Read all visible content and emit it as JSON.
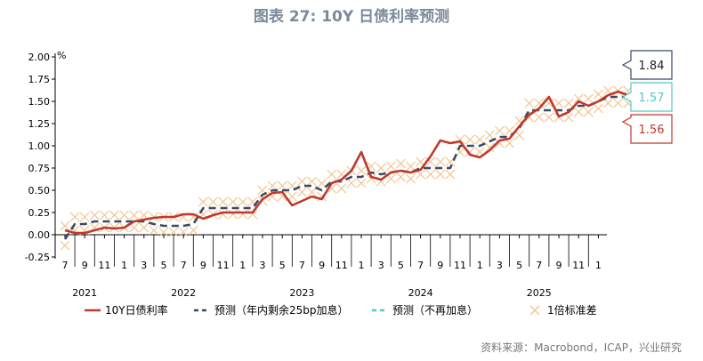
{
  "title": "图表 27: 10Y 日债利率预测",
  "source": "资料来源：Macrobond，ICAP，兴业研究",
  "chart_data": {
    "type": "line",
    "unit_label": "%",
    "ylim": [
      -0.25,
      2.0
    ],
    "yticks": [
      2.0,
      1.75,
      1.5,
      1.25,
      1.0,
      0.75,
      0.5,
      0.25,
      0.0,
      -0.25
    ],
    "ytick_labels": [
      "2.00",
      "1.75",
      "1.50",
      "1.25",
      "1.00",
      "0.75",
      "0.50",
      "0.25",
      "0.00",
      "-0.25"
    ],
    "x_ticks": [
      "7",
      "9",
      "11",
      "1",
      "3",
      "5",
      "7",
      "9",
      "11",
      "1",
      "3",
      "5",
      "7",
      "9",
      "11",
      "1",
      "3",
      "5",
      "7",
      "9",
      "11",
      "1",
      "3",
      "5",
      "7",
      "9",
      "11",
      "1"
    ],
    "year_labels": [
      {
        "label": "2021",
        "tick": 1
      },
      {
        "label": "2022",
        "tick": 6
      },
      {
        "label": "2023",
        "tick": 12
      },
      {
        "label": "2024",
        "tick": 18
      },
      {
        "label": "2025",
        "tick": 24
      }
    ],
    "colors": {
      "actual": "#c0392b",
      "forecast_hike": "#3b4a66",
      "forecast_no_hike": "#56c8c8",
      "band": "#f3c38d"
    },
    "series": [
      {
        "name": "10Y日债利率",
        "style": "solid",
        "x": [
          0,
          0.5,
          1,
          1.5,
          2,
          2.5,
          3,
          3.5,
          4,
          4.5,
          5,
          5.5,
          6,
          6.5,
          7,
          7.5,
          8,
          8.5,
          9,
          9.5,
          10,
          10.5,
          11,
          11.5,
          12,
          12.5,
          13,
          13.5,
          14,
          14.5,
          15,
          15.5,
          16,
          16.5,
          17,
          17.5,
          18,
          18.5,
          19,
          19.5,
          20,
          20.5,
          21,
          21.5,
          22,
          22.5,
          23,
          23.5,
          24,
          24.5,
          25,
          25.5,
          26,
          26.5,
          27,
          27.5,
          28,
          28.5,
          29
        ],
        "values": [
          0.05,
          0.02,
          0.02,
          0.05,
          0.08,
          0.07,
          0.08,
          0.15,
          0.17,
          0.19,
          0.2,
          0.2,
          0.23,
          0.23,
          0.18,
          0.22,
          0.25,
          0.25,
          0.25,
          0.25,
          0.4,
          0.47,
          0.48,
          0.33,
          0.38,
          0.43,
          0.4,
          0.58,
          0.62,
          0.72,
          0.93,
          0.65,
          0.62,
          0.7,
          0.72,
          0.7,
          0.73,
          0.88,
          1.06,
          1.03,
          1.05,
          0.9,
          0.87,
          0.95,
          1.06,
          1.08,
          1.22,
          1.35,
          1.42,
          1.55,
          1.33,
          1.38,
          1.5,
          1.45,
          1.5,
          1.57,
          1.61,
          1.57,
          1.56
        ]
      },
      {
        "name": "预测（年内剩余25bp加息）",
        "style": "dashed",
        "x": [
          0,
          0.5,
          1,
          1.5,
          2,
          2.5,
          3,
          3.5,
          4,
          4.5,
          5,
          5.5,
          6,
          6.5,
          7,
          7.5,
          8,
          8.5,
          9,
          9.5,
          10,
          10.5,
          11,
          11.5,
          12,
          12.5,
          13,
          13.5,
          14,
          14.5,
          15,
          15.5,
          16,
          16.5,
          17,
          17.5,
          18,
          18.5,
          19,
          19.5,
          20,
          20.5,
          21,
          21.5,
          22,
          22.5,
          23,
          23.5,
          24,
          24.5,
          25,
          25.5,
          26,
          26.5,
          27,
          27.5,
          28,
          28.5,
          29,
          29.5,
          30
        ],
        "values": [
          -0.05,
          0.12,
          0.12,
          0.15,
          0.15,
          0.15,
          0.15,
          0.15,
          0.15,
          0.12,
          0.1,
          0.1,
          0.1,
          0.12,
          0.3,
          0.3,
          0.3,
          0.3,
          0.3,
          0.3,
          0.45,
          0.5,
          0.5,
          0.5,
          0.55,
          0.55,
          0.5,
          0.6,
          0.6,
          0.65,
          0.65,
          0.7,
          0.68,
          0.7,
          0.72,
          0.7,
          0.75,
          0.75,
          0.75,
          0.75,
          1.0,
          1.0,
          1.0,
          1.05,
          1.1,
          1.1,
          1.2,
          1.4,
          1.4,
          1.4,
          1.4,
          1.4,
          1.45,
          1.45,
          1.5,
          1.55,
          1.55,
          1.55,
          1.55,
          1.84,
          1.84
        ]
      },
      {
        "name": "预测（不再加息）",
        "style": "dashed",
        "x": [
          29,
          29.5,
          30
        ],
        "values": [
          1.56,
          1.57,
          1.57
        ]
      },
      {
        "name": "1倍标准差",
        "style": "band-x",
        "x": [
          0,
          0.5,
          1,
          1.5,
          2,
          2.5,
          3,
          3.5,
          4,
          4.5,
          5,
          5.5,
          6,
          6.5,
          7,
          7.5,
          8,
          8.5,
          9,
          9.5,
          10,
          10.5,
          11,
          11.5,
          12,
          12.5,
          13,
          13.5,
          14,
          14.5,
          15,
          15.5,
          16,
          16.5,
          17,
          17.5,
          18,
          18.5,
          19,
          19.5,
          20,
          20.5,
          21,
          21.5,
          22,
          22.5,
          23,
          23.5,
          24,
          24.5,
          25,
          25.5,
          26,
          26.5,
          27,
          27.5,
          28,
          28.5,
          29
        ],
        "upper": [
          0.1,
          0.2,
          0.2,
          0.22,
          0.22,
          0.22,
          0.22,
          0.22,
          0.22,
          0.2,
          0.2,
          0.2,
          0.2,
          0.2,
          0.37,
          0.37,
          0.37,
          0.37,
          0.37,
          0.37,
          0.5,
          0.55,
          0.55,
          0.55,
          0.6,
          0.6,
          0.58,
          0.68,
          0.68,
          0.72,
          0.72,
          0.77,
          0.75,
          0.77,
          0.8,
          0.77,
          0.82,
          0.82,
          0.82,
          0.82,
          1.07,
          1.07,
          1.07,
          1.12,
          1.17,
          1.17,
          1.28,
          1.48,
          1.48,
          1.48,
          1.48,
          1.48,
          1.53,
          1.53,
          1.58,
          1.62,
          1.62,
          1.62,
          1.62
        ],
        "lower": [
          -0.12,
          0.05,
          0.05,
          0.08,
          0.08,
          0.08,
          0.08,
          0.08,
          0.08,
          0.05,
          0.03,
          0.03,
          0.03,
          0.05,
          0.23,
          0.23,
          0.23,
          0.23,
          0.23,
          0.23,
          0.38,
          0.43,
          0.43,
          0.43,
          0.48,
          0.48,
          0.43,
          0.52,
          0.52,
          0.58,
          0.58,
          0.63,
          0.6,
          0.63,
          0.65,
          0.63,
          0.68,
          0.68,
          0.68,
          0.68,
          0.93,
          0.93,
          0.93,
          0.98,
          1.03,
          1.03,
          1.12,
          1.32,
          1.32,
          1.32,
          1.32,
          1.32,
          1.38,
          1.38,
          1.42,
          1.48,
          1.48,
          1.48,
          1.48
        ]
      }
    ],
    "end_labels": [
      {
        "series": 1,
        "text": "1.84"
      },
      {
        "series": 2,
        "text": "1.57"
      },
      {
        "series": 0,
        "text": "1.56"
      }
    ],
    "legend": [
      {
        "label": "10Y日债利率",
        "key": "actual"
      },
      {
        "label": "预测（年内剩余25bp加息）",
        "key": "forecast_hike"
      },
      {
        "label": "预测（不再加息）",
        "key": "forecast_no_hike"
      },
      {
        "label": "1倍标准差",
        "key": "band"
      }
    ]
  }
}
